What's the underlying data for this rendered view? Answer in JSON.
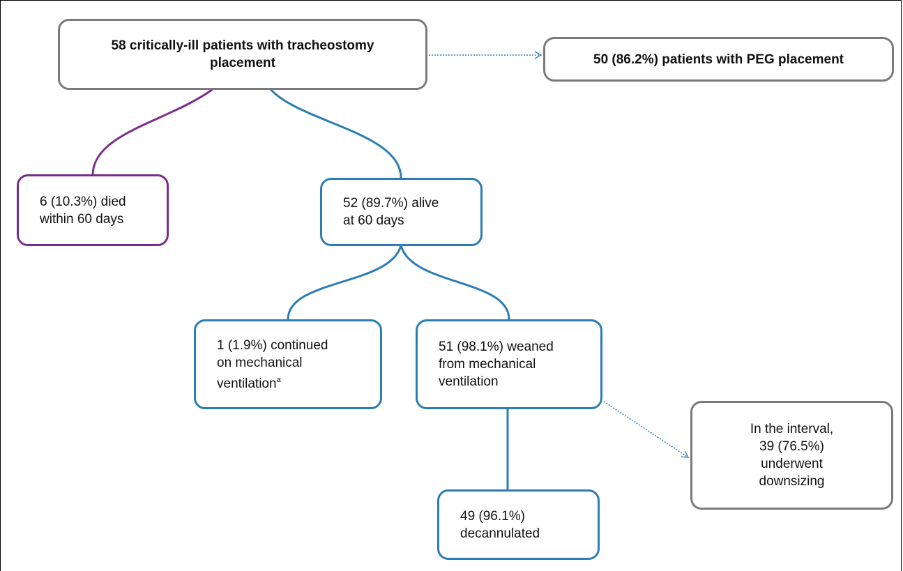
{
  "nodes": [
    {
      "lines": [
        "58 critically-ill patients with tracheostomy",
        "placement"
      ]
    },
    {
      "lines": [
        "50 (86.2%) patients with PEG placement"
      ]
    },
    {
      "lines": [
        "6 (10.3%) died",
        "within 60 days"
      ]
    },
    {
      "lines": [
        "52 (89.7%) alive",
        "at 60 days"
      ]
    },
    {
      "lines": [
        "1 (1.9%) continued",
        "on mechanical",
        "ventilation"
      ],
      "superscript": "a"
    },
    {
      "lines": [
        "51 (98.1%) weaned",
        "from mechanical",
        "ventilation"
      ]
    },
    {
      "lines": [
        "49 (96.1%)",
        "decannulated"
      ]
    },
    {
      "lines": [
        "In the interval,",
        "39 (76.5%)",
        "underwent",
        "downsizing"
      ]
    }
  ]
}
